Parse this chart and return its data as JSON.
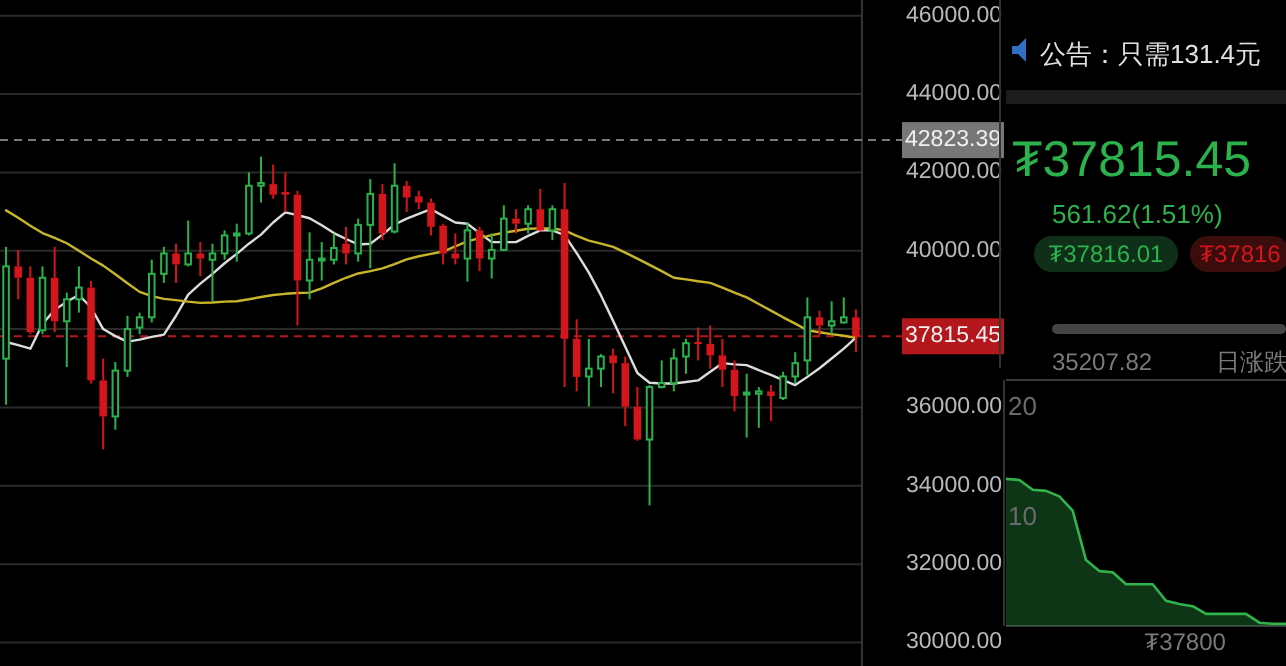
{
  "chart_data": [
    {
      "type": "candlestick",
      "categories": [
        null,
        null,
        null,
        null,
        null,
        null,
        null,
        null,
        null,
        null,
        null,
        null,
        null,
        null,
        null,
        null,
        null,
        null,
        null,
        null,
        null,
        null,
        null,
        null,
        null,
        null,
        null,
        null,
        null,
        null,
        null,
        null,
        null,
        null,
        null,
        null,
        null,
        null,
        null,
        null,
        null,
        null,
        null,
        null,
        null,
        null,
        null,
        null,
        null,
        null,
        null,
        null,
        null,
        null,
        null,
        null,
        null,
        null,
        null,
        null,
        null,
        null,
        null,
        null,
        null,
        null,
        null,
        null,
        null,
        null,
        null
      ],
      "ohlc": [
        [
          37245,
          40100,
          36070,
          39600
        ],
        [
          39600,
          40020,
          38760,
          39310
        ],
        [
          39310,
          39600,
          37880,
          37920
        ],
        [
          37970,
          39600,
          37870,
          39310
        ],
        [
          39310,
          40100,
          37920,
          38200
        ],
        [
          38200,
          38930,
          37030,
          38760
        ],
        [
          38760,
          39600,
          38420,
          39060
        ],
        [
          39060,
          39230,
          36610,
          36690
        ],
        [
          36690,
          37250,
          34930,
          35770
        ],
        [
          35770,
          37160,
          35430,
          36940
        ],
        [
          36940,
          38340,
          36780,
          38000
        ],
        [
          38040,
          38420,
          37870,
          38300
        ],
        [
          38300,
          39770,
          38170,
          39410
        ],
        [
          39410,
          40100,
          39180,
          39930
        ],
        [
          39930,
          40180,
          39180,
          39650
        ],
        [
          39650,
          40770,
          39600,
          39930
        ],
        [
          39930,
          40220,
          39350,
          39800
        ],
        [
          39770,
          40180,
          38710,
          39930
        ],
        [
          39930,
          40520,
          39770,
          40390
        ],
        [
          40390,
          40690,
          39720,
          40440
        ],
        [
          40440,
          42000,
          40390,
          41660
        ],
        [
          41660,
          42400,
          41230,
          41730
        ],
        [
          41700,
          42200,
          41330,
          41430
        ],
        [
          41500,
          42000,
          40990,
          41430
        ],
        [
          41430,
          41530,
          38090,
          39240
        ],
        [
          39240,
          40470,
          38760,
          39770
        ],
        [
          39770,
          40220,
          39240,
          39800
        ],
        [
          39770,
          40440,
          39650,
          40070
        ],
        [
          40180,
          40610,
          39650,
          39930
        ],
        [
          39930,
          40820,
          39720,
          40660
        ],
        [
          40660,
          41830,
          39550,
          41450
        ],
        [
          41450,
          41700,
          40270,
          40440
        ],
        [
          40490,
          42235,
          40440,
          41660
        ],
        [
          41660,
          41780,
          40990,
          41360
        ],
        [
          41390,
          41530,
          41060,
          41230
        ],
        [
          41230,
          41330,
          40390,
          40610
        ],
        [
          40640,
          40690,
          39650,
          39930
        ],
        [
          39930,
          40440,
          39650,
          39800
        ],
        [
          39800,
          40720,
          39210,
          40520
        ],
        [
          40520,
          40610,
          39480,
          39800
        ],
        [
          39800,
          40440,
          39290,
          40020
        ],
        [
          40020,
          41160,
          40000,
          40820
        ],
        [
          40820,
          41060,
          40440,
          40690
        ],
        [
          40690,
          41160,
          40440,
          41060
        ],
        [
          41060,
          41580,
          40490,
          40520
        ],
        [
          40520,
          41160,
          40270,
          41060
        ],
        [
          41060,
          41730,
          36520,
          37750
        ],
        [
          37750,
          38250,
          36410,
          36780
        ],
        [
          36790,
          37750,
          36020,
          36990
        ],
        [
          36990,
          37360,
          36520,
          37300
        ],
        [
          37330,
          37500,
          36360,
          37130
        ],
        [
          37130,
          37300,
          35520,
          36020
        ],
        [
          36020,
          36520,
          35150,
          35180
        ],
        [
          35180,
          36570,
          33500,
          36520
        ],
        [
          36520,
          37200,
          36490,
          36620
        ],
        [
          36620,
          37500,
          36410,
          37250
        ],
        [
          37300,
          37750,
          36860,
          37640
        ],
        [
          37670,
          38040,
          37200,
          37620
        ],
        [
          37620,
          38090,
          36990,
          37330
        ],
        [
          37330,
          37750,
          36520,
          36960
        ],
        [
          36960,
          37200,
          35900,
          36290
        ],
        [
          36330,
          36860,
          35230,
          36380
        ],
        [
          36350,
          36520,
          35480,
          36410
        ],
        [
          36410,
          36570,
          35650,
          36290
        ],
        [
          36240,
          36910,
          36190,
          36790
        ],
        [
          36790,
          37410,
          36620,
          37130
        ],
        [
          37200,
          38810,
          36820,
          38300
        ],
        [
          38300,
          38470,
          37840,
          38090
        ],
        [
          38090,
          38710,
          37870,
          38200
        ],
        [
          38170,
          38810,
          38140,
          38300
        ],
        [
          38300,
          38500,
          37410,
          37815.45
        ]
      ],
      "series": [
        {
          "type": "line",
          "color": "#dcdcdc",
          "values": [
            37670,
            37590,
            37500,
            38130,
            38490,
            38700,
            38870,
            38550,
            38000,
            37820,
            37680,
            37730,
            37800,
            37860,
            38340,
            38880,
            39160,
            39410,
            39680,
            39920,
            40180,
            40410,
            40720,
            40980,
            40910,
            40830,
            40650,
            40450,
            40300,
            40160,
            40180,
            40410,
            40670,
            40820,
            40940,
            41060,
            40890,
            40720,
            40690,
            40450,
            40220,
            40220,
            40220,
            40380,
            40520,
            40520,
            40400,
            39940,
            39440,
            38860,
            38210,
            37550,
            36880,
            36630,
            36610,
            36610,
            36650,
            36690,
            36910,
            37130,
            37100,
            37080,
            36950,
            36830,
            36700,
            36570,
            36780,
            37000,
            37250,
            37500,
            37780
          ]
        },
        {
          "type": "line",
          "color": "#c9b52a",
          "values": [
            41030,
            40840,
            40640,
            40450,
            40330,
            40190,
            40000,
            39800,
            39620,
            39400,
            39170,
            38950,
            38840,
            38770,
            38740,
            38700,
            38670,
            38680,
            38700,
            38710,
            38760,
            38820,
            38870,
            38900,
            38920,
            38930,
            39040,
            39180,
            39310,
            39420,
            39480,
            39550,
            39660,
            39780,
            39860,
            39920,
            39980,
            40110,
            40240,
            40320,
            40400,
            40460,
            40510,
            40560,
            40570,
            40570,
            40520,
            40380,
            40260,
            40180,
            40100,
            39950,
            39800,
            39640,
            39480,
            39310,
            39270,
            39220,
            39180,
            39060,
            38930,
            38810,
            38640,
            38470,
            38300,
            38140,
            37970,
            37920,
            37870,
            37830,
            37780
          ]
        }
      ],
      "ylim": [
        29400,
        46400
      ],
      "yticks": [
        {
          "value": 30000,
          "label": "30000.00"
        },
        {
          "value": 32000,
          "label": "32000.00"
        },
        {
          "value": 34000,
          "label": "34000.00"
        },
        {
          "value": 36000,
          "label": "36000.00"
        },
        {
          "value": 38000,
          "label": null
        },
        {
          "value": 40000,
          "label": "40000.00"
        },
        {
          "value": 42000,
          "label": "42000.00"
        },
        {
          "value": 44000,
          "label": "44000.00"
        },
        {
          "value": 46000,
          "label": "46000.00"
        }
      ],
      "ref_lines": [
        {
          "axis": "y",
          "value": 42823.39,
          "label": "42823.39",
          "color": "#777777",
          "line_style": "dashed"
        },
        {
          "axis": "y",
          "value": 37815.45,
          "label": "37815.45",
          "color": "#b3161b",
          "line_style": "dashed"
        }
      ],
      "grid": "y",
      "tick_labels": "y"
    },
    {
      "type": "other",
      "annotations": [
        "公告：只需131.4元",
        "₮37815.45",
        "561.62(1.51%)",
        "₮37816.01",
        "₮37816",
        "35207.82",
        "日涨跌"
      ]
    },
    {
      "type": "area",
      "categories": [
        null,
        null,
        null,
        null,
        null,
        null,
        null,
        null,
        null,
        null,
        null,
        null,
        null,
        null,
        null,
        null,
        null,
        null,
        null,
        null,
        null,
        null
      ],
      "series": [
        {
          "color": "#2fb34a",
          "values": [
            13.4,
            13.3,
            12.4,
            12.3,
            11.8,
            10.5,
            6.0,
            5.0,
            4.9,
            3.8,
            3.8,
            3.8,
            2.3,
            2.0,
            1.8,
            1.1,
            1.1,
            1.1,
            1.1,
            0.3,
            0.2,
            0.2
          ]
        }
      ],
      "ylim": [
        0,
        22.4
      ],
      "yticks": [
        10,
        20
      ],
      "tick_labels": "y",
      "annotations": [
        "₮37800"
      ]
    }
  ]
}
